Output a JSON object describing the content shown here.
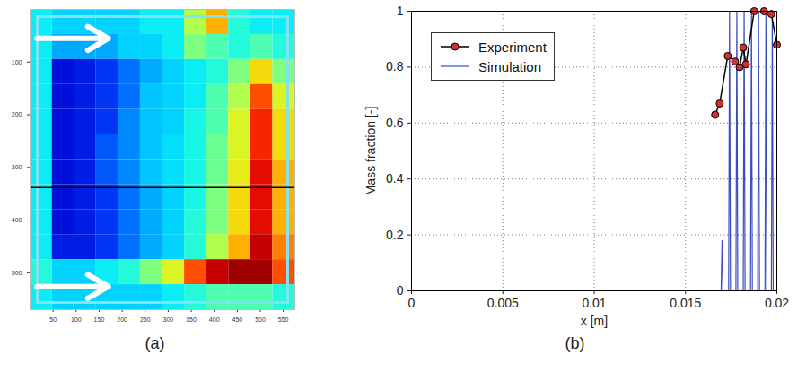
{
  "chart_data": [
    {
      "type": "heatmap",
      "panel": "(a)",
      "xlim": [
        0,
        575
      ],
      "ylim": [
        570,
        0
      ],
      "xticks": [
        50,
        100,
        150,
        200,
        250,
        300,
        350,
        400,
        450,
        500,
        550
      ],
      "yticks": [
        100,
        200,
        300,
        400,
        500
      ],
      "clim": [
        0,
        1
      ],
      "cells": [
        [
          0.35,
          0.3,
          0.3,
          0.3,
          0.3,
          0.35,
          0.35,
          0.55,
          0.7,
          0.4,
          0.35,
          0.35
        ],
        [
          0.35,
          0.25,
          0.25,
          0.25,
          0.3,
          0.3,
          0.35,
          0.5,
          0.45,
          0.4,
          0.45,
          0.4
        ],
        [
          0.35,
          0.1,
          0.12,
          0.15,
          0.2,
          0.25,
          0.3,
          0.35,
          0.4,
          0.5,
          0.65,
          0.5
        ],
        [
          0.35,
          0.1,
          0.12,
          0.15,
          0.2,
          0.28,
          0.3,
          0.35,
          0.45,
          0.55,
          0.8,
          0.6
        ],
        [
          0.35,
          0.1,
          0.12,
          0.15,
          0.22,
          0.28,
          0.3,
          0.38,
          0.45,
          0.6,
          0.85,
          0.65
        ],
        [
          0.35,
          0.1,
          0.12,
          0.18,
          0.22,
          0.28,
          0.32,
          0.38,
          0.48,
          0.6,
          0.85,
          0.65
        ],
        [
          0.35,
          0.1,
          0.12,
          0.18,
          0.22,
          0.28,
          0.32,
          0.38,
          0.48,
          0.62,
          0.9,
          0.7
        ],
        [
          0.35,
          0.1,
          0.12,
          0.15,
          0.2,
          0.25,
          0.3,
          0.38,
          0.5,
          0.65,
          0.9,
          0.7
        ],
        [
          0.35,
          0.1,
          0.12,
          0.15,
          0.2,
          0.25,
          0.3,
          0.4,
          0.5,
          0.65,
          0.9,
          0.7
        ],
        [
          0.35,
          0.12,
          0.12,
          0.15,
          0.2,
          0.25,
          0.3,
          0.4,
          0.55,
          0.7,
          0.95,
          0.75
        ],
        [
          0.4,
          0.3,
          0.3,
          0.35,
          0.4,
          0.5,
          0.6,
          0.8,
          0.95,
          1,
          1,
          0.8
        ],
        [
          0.35,
          0.3,
          0.3,
          0.3,
          0.3,
          0.3,
          0.35,
          0.4,
          0.45,
          0.45,
          0.45,
          0.4
        ]
      ],
      "line_y": 338,
      "arrows": [
        {
          "x1": 15,
          "x2": 170,
          "y": 55
        },
        {
          "x1": 15,
          "x2": 170,
          "y": 526
        }
      ]
    },
    {
      "type": "line",
      "panel": "(b)",
      "x_label": "x [m]",
      "y_label": "Mass fraction [-]",
      "xlim": [
        0,
        0.02
      ],
      "ylim": [
        0,
        1
      ],
      "xticks": [
        0,
        0.005,
        0.01,
        0.015,
        0.02
      ],
      "yticks": [
        0,
        0.2,
        0.4,
        0.6,
        0.8,
        1
      ],
      "grid": true,
      "legend": "upper left",
      "series": [
        {
          "name": "Experiment",
          "color": "#000000",
          "marker": "circle",
          "line_style": "solid",
          "x": [
            0.01662,
            0.01687,
            0.01731,
            0.01771,
            0.01796,
            0.01816,
            0.01831,
            0.01876,
            0.0193,
            0.0197,
            0.02
          ],
          "values": [
            0.63,
            0.67,
            0.84,
            0.82,
            0.8,
            0.87,
            0.81,
            1.0,
            1.0,
            0.99,
            0.88
          ]
        },
        {
          "name": "Simulation",
          "color": "#3b4cc0",
          "line_style": "solid",
          "x": [
            0,
            0.01695,
            0.017,
            0.01705,
            0.01736,
            0.01741,
            0.01746,
            0.01776,
            0.01781,
            0.01786,
            0.01816,
            0.01821,
            0.01826,
            0.01856,
            0.01861,
            0.01866,
            0.01895,
            0.019,
            0.01905,
            0.01935,
            0.0194,
            0.01945,
            0.0197,
            0.01975,
            0.0198,
            0.02
          ],
          "values": [
            0,
            0,
            0.18,
            0,
            0,
            1,
            0,
            0,
            1,
            0,
            0,
            1,
            0,
            0,
            1,
            0,
            0,
            1,
            0,
            0,
            1,
            0,
            0,
            1,
            0,
            0
          ]
        }
      ]
    }
  ]
}
